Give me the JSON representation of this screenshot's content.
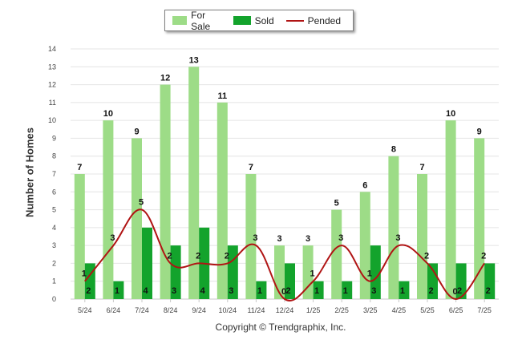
{
  "legend": {
    "for_sale": "For Sale",
    "sold": "Sold",
    "pended": "Pended"
  },
  "footer": {
    "copyright": "Copyright © Trendgraphix, Inc."
  },
  "colors": {
    "for_sale": "#9ddc87",
    "sold": "#13a32c",
    "pended": "#b01414",
    "grid": "#e4e4e4"
  },
  "chart_data": {
    "type": "bar",
    "title": "",
    "xlabel": "",
    "ylabel": "Number of Homes",
    "ylim": [
      0,
      14
    ],
    "yticks": [
      "0",
      "1",
      "2",
      "3",
      "4",
      "5",
      "6",
      "7",
      "8",
      "9",
      "10",
      "11",
      "12",
      "13",
      "14"
    ],
    "grid": true,
    "legend_position": "top-center",
    "categories": [
      "5/24",
      "6/24",
      "7/24",
      "8/24",
      "9/24",
      "10/24",
      "11/24",
      "12/24",
      "1/25",
      "2/25",
      "3/25",
      "4/25",
      "5/25",
      "6/25",
      "7/25"
    ],
    "series": [
      {
        "name": "For Sale",
        "type": "bar",
        "values": [
          7,
          10,
          9,
          12,
          13,
          11,
          7,
          3,
          3,
          5,
          6,
          8,
          7,
          10,
          9
        ]
      },
      {
        "name": "Sold",
        "type": "bar",
        "values": [
          2,
          1,
          4,
          3,
          4,
          3,
          1,
          2,
          1,
          1,
          3,
          1,
          2,
          2,
          2
        ]
      },
      {
        "name": "Pended",
        "type": "line",
        "values": [
          1,
          3,
          5,
          2,
          2,
          2,
          3,
          0,
          1,
          3,
          1,
          3,
          2,
          0,
          2
        ]
      }
    ]
  }
}
